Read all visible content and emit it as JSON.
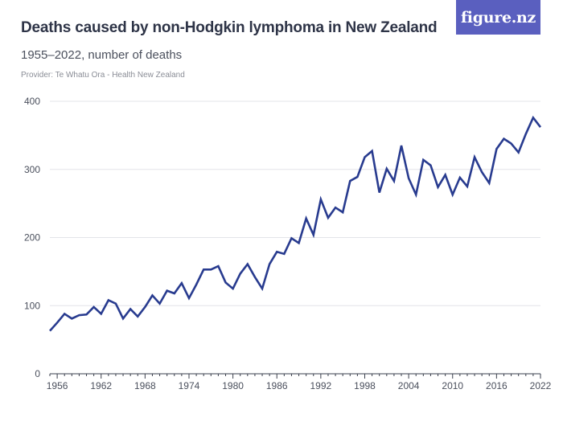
{
  "header": {
    "title": "Deaths caused by non-Hodgkin lymphoma in New Zealand",
    "subtitle": "1955–2022, number of deaths",
    "provider": "Provider: Te Whatu Ora - Health New Zealand"
  },
  "logo": {
    "text": "figure.nz"
  },
  "colors": {
    "line": "#283b8f",
    "grid": "#e3e4e8",
    "logo_bg": "#5a5fbf"
  },
  "chart_data": {
    "type": "line",
    "title": "Deaths caused by non-Hodgkin lymphoma in New Zealand",
    "subtitle": "1955–2022, number of deaths",
    "xlabel": "",
    "ylabel": "",
    "xlim": [
      1955,
      2022
    ],
    "ylim": [
      0,
      400
    ],
    "y_ticks": [
      0,
      100,
      200,
      300,
      400
    ],
    "x_ticks": [
      1956,
      1962,
      1968,
      1974,
      1980,
      1986,
      1992,
      1998,
      2004,
      2010,
      2016,
      2022
    ],
    "grid": true,
    "legend": "none",
    "series": [
      {
        "x": [
          1955,
          1956,
          1957,
          1958,
          1959,
          1960,
          1961,
          1962,
          1963,
          1964,
          1965,
          1966,
          1967,
          1968,
          1969,
          1970,
          1971,
          1972,
          1973,
          1974,
          1975,
          1976,
          1977,
          1978,
          1979,
          1980,
          1981,
          1982,
          1983,
          1984,
          1985,
          1986,
          1987,
          1988,
          1989,
          1990,
          1991,
          1992,
          1993,
          1994,
          1995,
          1996,
          1997,
          1998,
          1999,
          2000,
          2001,
          2002,
          2003,
          2004,
          2005,
          2006,
          2007,
          2008,
          2009,
          2010,
          2011,
          2012,
          2013,
          2014,
          2015,
          2016,
          2017,
          2018,
          2019,
          2020,
          2021,
          2022
        ],
        "values": [
          63,
          75,
          88,
          81,
          86,
          87,
          98,
          88,
          108,
          103,
          81,
          95,
          84,
          98,
          115,
          103,
          122,
          118,
          133,
          111,
          131,
          153,
          153,
          158,
          134,
          125,
          147,
          161,
          142,
          125,
          161,
          179,
          176,
          199,
          192,
          228,
          204,
          256,
          229,
          244,
          237,
          283,
          289,
          318,
          327,
          266,
          301,
          283,
          335,
          287,
          263,
          314,
          306,
          274,
          292,
          263,
          288,
          275,
          318,
          296,
          280,
          330,
          345,
          338,
          325,
          352,
          376,
          362
        ]
      }
    ]
  }
}
